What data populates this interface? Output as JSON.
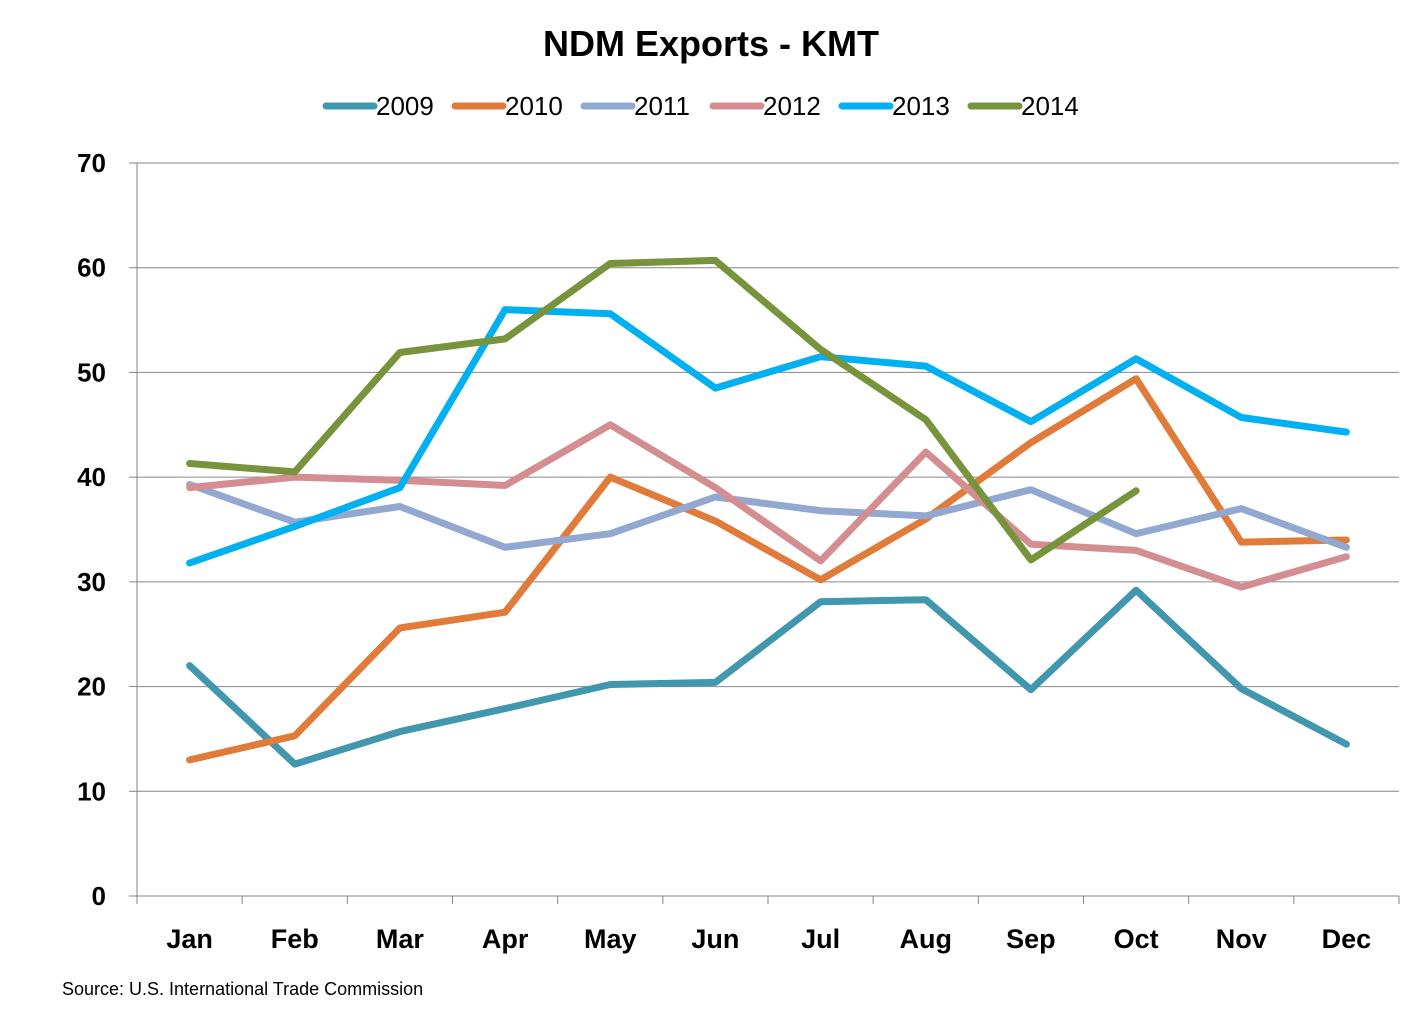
{
  "chart_data": {
    "type": "line",
    "title": "NDM Exports - KMT",
    "xlabel": "",
    "ylabel": "",
    "categories": [
      "Jan",
      "Feb",
      "Mar",
      "Apr",
      "May",
      "Jun",
      "Jul",
      "Aug",
      "Sep",
      "Oct",
      "Nov",
      "Dec"
    ],
    "ylim": [
      0,
      70
    ],
    "yticks": [
      "0",
      "10",
      "20",
      "30",
      "40",
      "50",
      "60",
      "70"
    ],
    "grid": true,
    "legend_position": "top",
    "series": [
      {
        "name": "2009",
        "color": "#4197AE",
        "values": [
          22.0,
          12.6,
          15.7,
          17.9,
          20.2,
          20.4,
          28.1,
          28.3,
          19.7,
          29.2,
          19.8,
          14.5
        ]
      },
      {
        "name": "2010",
        "color": "#E07B39",
        "values": [
          13.0,
          15.3,
          25.6,
          27.1,
          40.0,
          35.8,
          30.2,
          36.0,
          43.3,
          49.4,
          33.8,
          34.0
        ]
      },
      {
        "name": "2011",
        "color": "#92A8D1",
        "values": [
          39.3,
          35.7,
          37.2,
          33.3,
          34.6,
          38.1,
          36.8,
          36.3,
          38.8,
          34.6,
          37.0,
          33.3
        ]
      },
      {
        "name": "2012",
        "color": "#D48E91",
        "values": [
          39.0,
          40.0,
          39.7,
          39.2,
          45.0,
          39.0,
          32.0,
          42.4,
          33.6,
          33.0,
          29.5,
          32.4
        ]
      },
      {
        "name": "2013",
        "color": "#00B0F0",
        "values": [
          31.8,
          35.3,
          39.0,
          56.0,
          55.6,
          48.5,
          51.5,
          50.6,
          45.3,
          51.3,
          45.7,
          44.3
        ]
      },
      {
        "name": "2014",
        "color": "#77933C",
        "values": [
          41.3,
          40.5,
          51.9,
          53.2,
          60.4,
          60.7,
          52.2,
          45.5,
          32.1,
          38.7,
          null,
          null
        ]
      }
    ],
    "source": "Source: U.S. International Trade Commission"
  }
}
